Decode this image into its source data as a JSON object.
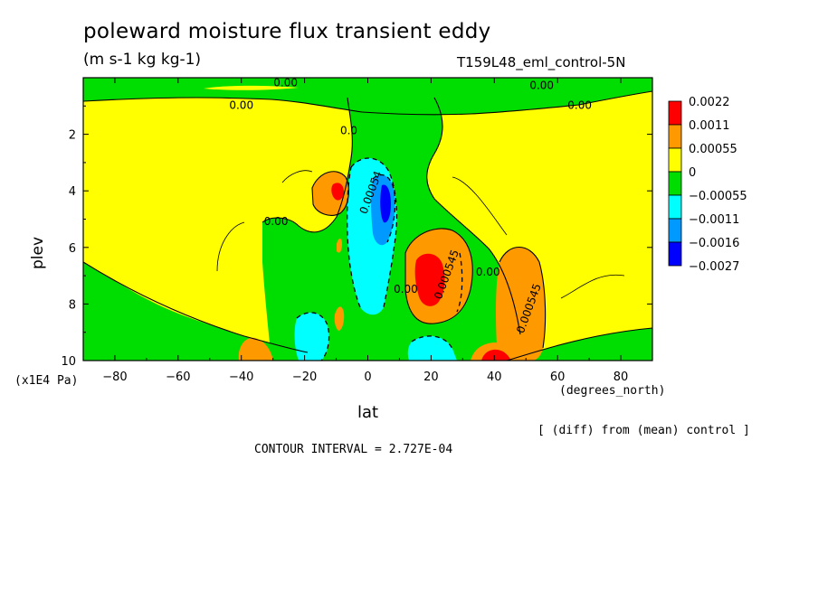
{
  "header": {
    "title": "poleward moisture flux transient eddy",
    "units": "(m s-1 kg kg-1)",
    "run_name": "T159L48_eml_control-5N"
  },
  "footer": {
    "diff_note": "[ (diff) from (mean) control ]",
    "contour_interval": "CONTOUR INTERVAL = 2.727E-04"
  },
  "chart_data": {
    "type": "contour",
    "xlabel": "lat",
    "x_units": "(degrees_north)",
    "ylabel": "plev",
    "y_units": "(x1E4 Pa)",
    "xlim": [
      -90,
      90
    ],
    "ylim": [
      0,
      10
    ],
    "y_inverted": true,
    "x_ticks": [
      "-80",
      "-60",
      "-40",
      "-20",
      "0",
      "20",
      "40",
      "60",
      "80"
    ],
    "y_ticks": [
      "2",
      "4",
      "6",
      "8",
      "10"
    ],
    "contour_interval": 0.0002727,
    "colorbar": {
      "levels": [
        "0.0022",
        "0.0011",
        "0.00055",
        "0",
        "-0.00055",
        "-0.0011",
        "-0.0016",
        "-0.0027"
      ],
      "colors": [
        "#ff0000",
        "#ff9900",
        "#ffff00",
        "#00dd00",
        "#00ffff",
        "#0099ff",
        "#0000ff"
      ]
    },
    "contour_labels": [
      {
        "text": "0.00",
        "lat": -26,
        "plev": 0.3
      },
      {
        "text": "0.00",
        "lat": -40,
        "plev": 1.1
      },
      {
        "text": "0.00",
        "lat": 55,
        "plev": 0.4
      },
      {
        "text": "0.00",
        "lat": 67,
        "plev": 1.1
      },
      {
        "text": "0.0",
        "lat": -6,
        "plev": 2.0
      },
      {
        "text": "0.00",
        "lat": -29,
        "plev": 5.2
      },
      {
        "text": "0.00054",
        "lat": 2,
        "plev": 4.1
      },
      {
        "text": "0.00",
        "lat": 12,
        "plev": 7.6
      },
      {
        "text": "0.000545",
        "lat": 26,
        "plev": 7.0
      },
      {
        "text": "0.00",
        "lat": 38,
        "plev": 7.0
      },
      {
        "text": "0.000545",
        "lat": 52,
        "plev": 8.2
      }
    ],
    "fill_regions": [
      {
        "band": "green",
        "desc": "upper stratosphere band",
        "lat": [
          -90,
          90
        ],
        "plev": [
          0,
          1.2
        ]
      },
      {
        "band": "yellow",
        "desc": "background",
        "lat": [
          -90,
          90
        ],
        "plev": [
          0,
          10
        ]
      },
      {
        "band": "green",
        "desc": "equatorial column",
        "lat": [
          -6,
          26
        ],
        "plev": [
          0.8,
          10
        ]
      },
      {
        "band": "cyan",
        "desc": "equatorial negative core",
        "lat": [
          -3,
          12
        ],
        "plev": [
          3,
          8
        ]
      },
      {
        "band": "blue",
        "desc": "deep negative core",
        "lat": [
          2,
          10
        ],
        "plev": [
          3.5,
          5
        ]
      },
      {
        "band": "orange",
        "desc": "positive lobe NH tropics",
        "lat": [
          12,
          30
        ],
        "plev": [
          5.5,
          8.5
        ]
      },
      {
        "band": "red",
        "desc": "positive max NH tropics",
        "lat": [
          15,
          22
        ],
        "plev": [
          6.3,
          7.8
        ]
      },
      {
        "band": "orange",
        "desc": "positive lobe near 45N",
        "lat": [
          42,
          55
        ],
        "plev": [
          6,
          10
        ]
      },
      {
        "band": "orange",
        "desc": "positive lobe near 10S upper",
        "lat": [
          -18,
          -5
        ],
        "plev": [
          3.3,
          4.7
        ]
      },
      {
        "band": "red",
        "desc": "positive max near 10S upper",
        "lat": [
          -11,
          -6
        ],
        "plev": [
          3.7,
          4.3
        ]
      },
      {
        "band": "red",
        "desc": "surface max near 40N",
        "lat": [
          36,
          44
        ],
        "plev": [
          9.6,
          10
        ]
      }
    ]
  }
}
